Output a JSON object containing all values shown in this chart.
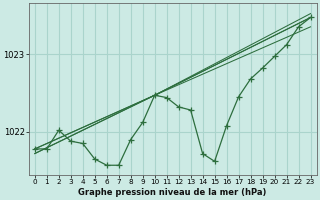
{
  "background_color": "#cceae4",
  "grid_color": "#aad4cc",
  "line_color": "#2d6e3e",
  "title": "Graphe pression niveau de la mer (hPa)",
  "xlim": [
    -0.5,
    23.5
  ],
  "ylim": [
    1021.45,
    1023.65
  ],
  "yticks": [
    1022,
    1023
  ],
  "xticks": [
    0,
    1,
    2,
    3,
    4,
    5,
    6,
    7,
    8,
    9,
    10,
    11,
    12,
    13,
    14,
    15,
    16,
    17,
    18,
    19,
    20,
    21,
    22,
    23
  ],
  "main_x": [
    0,
    1,
    2,
    3,
    4,
    5,
    6,
    7,
    8,
    9,
    10,
    11,
    12,
    13,
    14,
    15,
    16,
    17,
    18,
    19,
    20,
    21,
    22,
    23
  ],
  "main_y": [
    1021.78,
    1021.78,
    1022.02,
    1021.88,
    1021.85,
    1021.65,
    1021.57,
    1021.57,
    1021.9,
    1022.12,
    1022.47,
    1022.44,
    1022.32,
    1022.28,
    1021.72,
    1021.62,
    1022.08,
    1022.45,
    1022.68,
    1022.82,
    1022.97,
    1023.12,
    1023.35,
    1023.47
  ],
  "trend_lines": [
    {
      "x": [
        0,
        10,
        23
      ],
      "y": [
        1021.78,
        1022.47,
        1023.47
      ]
    },
    {
      "x": [
        0,
        10,
        23
      ],
      "y": [
        1021.72,
        1022.47,
        1023.47
      ]
    },
    {
      "x": [
        0,
        10,
        23
      ],
      "y": [
        1021.78,
        1022.47,
        1023.35
      ]
    },
    {
      "x": [
        0,
        10,
        23
      ],
      "y": [
        1021.72,
        1022.47,
        1023.52
      ]
    }
  ]
}
